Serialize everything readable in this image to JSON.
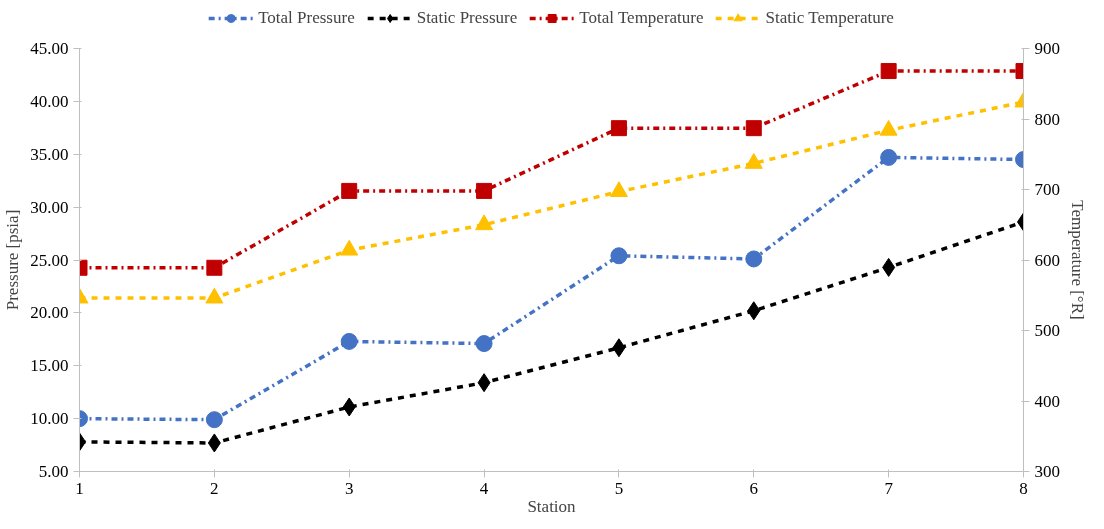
{
  "chart_data": {
    "type": "line",
    "xlabel": "Station",
    "ylabel": "Pressure [psia]",
    "y2label": "Temperature [°R]",
    "x": [
      1,
      2,
      3,
      4,
      5,
      6,
      7,
      8
    ],
    "xlim": [
      1,
      8
    ],
    "xticks": [
      1,
      2,
      3,
      4,
      5,
      6,
      7,
      8
    ],
    "ylim": [
      5,
      45
    ],
    "yticks": [
      {
        "value": 5,
        "label": "5.00"
      },
      {
        "value": 10,
        "label": "10.00"
      },
      {
        "value": 15,
        "label": "15.00"
      },
      {
        "value": 20,
        "label": "20.00"
      },
      {
        "value": 25,
        "label": "25.00"
      },
      {
        "value": 30,
        "label": "30.00"
      },
      {
        "value": 35,
        "label": "35.00"
      },
      {
        "value": 40,
        "label": "40.00"
      },
      {
        "value": 45,
        "label": "45.00"
      }
    ],
    "y2lim": [
      300,
      900
    ],
    "y2ticks": [
      300,
      400,
      500,
      600,
      700,
      800,
      900
    ],
    "grid": false,
    "legend": "top",
    "series": [
      {
        "name": "Total Pressure",
        "color": "#4472c4",
        "marker": "circle",
        "line_style": "dashdot",
        "values": [
          10.0,
          9.9,
          17.3,
          17.1,
          25.4,
          25.1,
          34.7,
          34.5
        ]
      },
      {
        "name": "Static Pressure",
        "color": "#000000",
        "marker": "diamond",
        "line_style": "dashed",
        "values": [
          7.8,
          7.7,
          11.1,
          13.4,
          16.7,
          20.2,
          24.3,
          28.6
        ]
      },
      {
        "name": "Total Temperature",
        "color": "#c00000",
        "marker": "square",
        "line_style": "dashdot",
        "axis": "y2",
        "values": [
          589,
          589,
          698,
          698,
          787,
          787,
          868,
          868
        ]
      },
      {
        "name": "Static Temperature",
        "color": "#ffc000",
        "marker": "triangle",
        "line_style": "dashed",
        "axis": "y2",
        "values": [
          546,
          546,
          614,
          650,
          697,
          737,
          784,
          824
        ]
      }
    ]
  }
}
